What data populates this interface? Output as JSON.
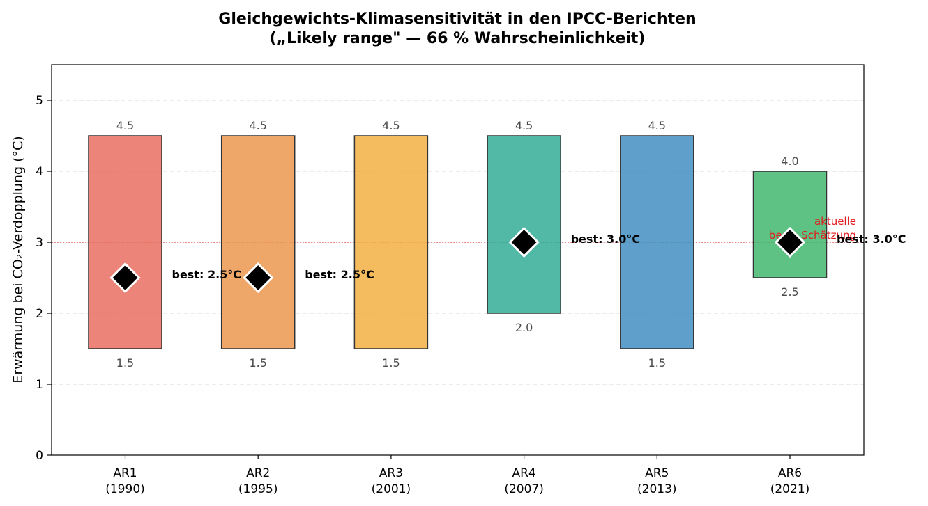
{
  "chart_data": {
    "type": "bar",
    "title": "Gleichgewichts-Klimasensitivität in den IPCC-Berichten",
    "subtitle": "(„Likely range\" — 66 % Wahrscheinlichkeit)",
    "ylabel": "Erwärmung bei CO₂-Verdopplung (°C)",
    "xlabel": "",
    "ylim": [
      0,
      5.5
    ],
    "yticks": [
      "0",
      "1",
      "2",
      "3",
      "4",
      "5"
    ],
    "grid": "y-dashed",
    "reference_line": {
      "value": 3.0,
      "color": "#e41a1c",
      "annotation": [
        "aktuelle",
        "beste Schätzung"
      ]
    },
    "series": [
      {
        "category": "AR1",
        "year": "(1990)",
        "low": 1.5,
        "high": 4.5,
        "low_label": "1.5",
        "high_label": "4.5",
        "best": 2.5,
        "best_label": "best: 2.5°C",
        "color": "#e8695d"
      },
      {
        "category": "AR2",
        "year": "(1995)",
        "low": 1.5,
        "high": 4.5,
        "low_label": "1.5",
        "high_label": "4.5",
        "best": 2.5,
        "best_label": "best: 2.5°C",
        "color": "#ea9447"
      },
      {
        "category": "AR3",
        "year": "(2001)",
        "low": 1.5,
        "high": 4.5,
        "low_label": "1.5",
        "high_label": "4.5",
        "best": null,
        "best_label": "",
        "color": "#f2ad3c"
      },
      {
        "category": "AR4",
        "year": "(2007)",
        "low": 2.0,
        "high": 4.5,
        "low_label": "2.0",
        "high_label": "4.5",
        "best": 3.0,
        "best_label": "best: 3.0°C",
        "color": "#2baa93"
      },
      {
        "category": "AR5",
        "year": "(2013)",
        "low": 1.5,
        "high": 4.5,
        "low_label": "1.5",
        "high_label": "4.5",
        "best": null,
        "best_label": "",
        "color": "#3a8bc0"
      },
      {
        "category": "AR6",
        "year": "(2021)",
        "low": 2.5,
        "high": 4.0,
        "low_label": "2.5",
        "high_label": "4.0",
        "best": 3.0,
        "best_label": "best: 3.0°C",
        "color": "#3bb56a"
      }
    ]
  }
}
